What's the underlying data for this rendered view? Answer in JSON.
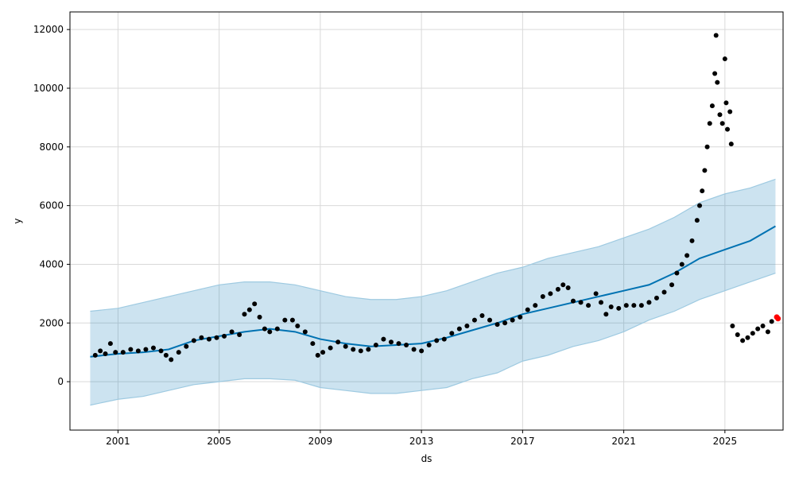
{
  "chart_data": {
    "type": "scatter",
    "title": "",
    "xlabel": "ds",
    "ylabel": "y",
    "xlim": [
      1999.1,
      2027.3
    ],
    "ylim": [
      -1650,
      12600
    ],
    "x_ticks": [
      2001,
      2005,
      2009,
      2013,
      2017,
      2021,
      2025
    ],
    "x_tick_labels": [
      "2001",
      "2005",
      "2009",
      "2013",
      "2017",
      "2021",
      "2025"
    ],
    "y_ticks": [
      0,
      2000,
      4000,
      6000,
      8000,
      10000,
      12000
    ],
    "y_tick_labels": [
      "0",
      "2000",
      "4000",
      "6000",
      "8000",
      "10000",
      "12000"
    ],
    "grid": true,
    "legend": "none",
    "colors": {
      "observed": "#000000",
      "forecast": "#0072B2",
      "interval_fill": "#0072B2",
      "interval_edge": "#9ecae1",
      "highlight": "#ff0000",
      "grid": "#d9d9d9"
    },
    "observed_points": [
      [
        2000.1,
        900
      ],
      [
        2000.3,
        1050
      ],
      [
        2000.5,
        950
      ],
      [
        2000.7,
        1300
      ],
      [
        2000.9,
        1000
      ],
      [
        2001.2,
        1000
      ],
      [
        2001.5,
        1100
      ],
      [
        2001.8,
        1050
      ],
      [
        2002.1,
        1100
      ],
      [
        2002.4,
        1150
      ],
      [
        2002.7,
        1050
      ],
      [
        2002.9,
        900
      ],
      [
        2003.1,
        750
      ],
      [
        2003.4,
        1000
      ],
      [
        2003.7,
        1200
      ],
      [
        2004.0,
        1400
      ],
      [
        2004.3,
        1500
      ],
      [
        2004.6,
        1450
      ],
      [
        2004.9,
        1500
      ],
      [
        2005.2,
        1550
      ],
      [
        2005.5,
        1700
      ],
      [
        2005.8,
        1600
      ],
      [
        2006.0,
        2300
      ],
      [
        2006.2,
        2450
      ],
      [
        2006.4,
        2650
      ],
      [
        2006.6,
        2200
      ],
      [
        2006.8,
        1800
      ],
      [
        2007.0,
        1700
      ],
      [
        2007.3,
        1800
      ],
      [
        2007.6,
        2100
      ],
      [
        2007.9,
        2100
      ],
      [
        2008.1,
        1900
      ],
      [
        2008.4,
        1700
      ],
      [
        2008.7,
        1300
      ],
      [
        2008.9,
        900
      ],
      [
        2009.1,
        1000
      ],
      [
        2009.4,
        1150
      ],
      [
        2009.7,
        1350
      ],
      [
        2010.0,
        1200
      ],
      [
        2010.3,
        1100
      ],
      [
        2010.6,
        1050
      ],
      [
        2010.9,
        1100
      ],
      [
        2011.2,
        1250
      ],
      [
        2011.5,
        1450
      ],
      [
        2011.8,
        1350
      ],
      [
        2012.1,
        1300
      ],
      [
        2012.4,
        1250
      ],
      [
        2012.7,
        1100
      ],
      [
        2013.0,
        1050
      ],
      [
        2013.3,
        1250
      ],
      [
        2013.6,
        1400
      ],
      [
        2013.9,
        1450
      ],
      [
        2014.2,
        1650
      ],
      [
        2014.5,
        1800
      ],
      [
        2014.8,
        1900
      ],
      [
        2015.1,
        2100
      ],
      [
        2015.4,
        2250
      ],
      [
        2015.7,
        2100
      ],
      [
        2016.0,
        1950
      ],
      [
        2016.3,
        2000
      ],
      [
        2016.6,
        2100
      ],
      [
        2016.9,
        2200
      ],
      [
        2017.2,
        2450
      ],
      [
        2017.5,
        2600
      ],
      [
        2017.8,
        2900
      ],
      [
        2018.1,
        3000
      ],
      [
        2018.4,
        3150
      ],
      [
        2018.6,
        3300
      ],
      [
        2018.8,
        3200
      ],
      [
        2019.0,
        2750
      ],
      [
        2019.3,
        2700
      ],
      [
        2019.6,
        2600
      ],
      [
        2019.9,
        3000
      ],
      [
        2020.1,
        2700
      ],
      [
        2020.3,
        2300
      ],
      [
        2020.5,
        2550
      ],
      [
        2020.8,
        2500
      ],
      [
        2021.1,
        2600
      ],
      [
        2021.4,
        2600
      ],
      [
        2021.7,
        2600
      ],
      [
        2022.0,
        2700
      ],
      [
        2022.3,
        2850
      ],
      [
        2022.6,
        3050
      ],
      [
        2022.9,
        3300
      ],
      [
        2023.1,
        3700
      ],
      [
        2023.3,
        4000
      ],
      [
        2023.5,
        4300
      ],
      [
        2023.7,
        4800
      ],
      [
        2023.9,
        5500
      ],
      [
        2024.0,
        6000
      ],
      [
        2024.1,
        6500
      ],
      [
        2024.2,
        7200
      ],
      [
        2024.3,
        8000
      ],
      [
        2024.4,
        8800
      ],
      [
        2024.5,
        9400
      ],
      [
        2024.6,
        10500
      ],
      [
        2024.65,
        11800
      ],
      [
        2024.7,
        10200
      ],
      [
        2024.8,
        9100
      ],
      [
        2024.9,
        8800
      ],
      [
        2025.0,
        11000
      ],
      [
        2025.05,
        9500
      ],
      [
        2025.1,
        8600
      ],
      [
        2025.2,
        9200
      ],
      [
        2025.25,
        8100
      ],
      [
        2025.3,
        1900
      ],
      [
        2025.5,
        1600
      ],
      [
        2025.7,
        1400
      ],
      [
        2025.9,
        1500
      ],
      [
        2026.1,
        1650
      ],
      [
        2026.3,
        1800
      ],
      [
        2026.5,
        1900
      ],
      [
        2026.7,
        1700
      ],
      [
        2026.85,
        2050
      ]
    ],
    "forecast_line": {
      "x": [
        1999.9,
        2001,
        2002,
        2003,
        2004,
        2005,
        2006,
        2007,
        2008,
        2009,
        2010,
        2011,
        2012,
        2013,
        2014,
        2015,
        2016,
        2017,
        2018,
        2019,
        2020,
        2021,
        2022,
        2023,
        2024,
        2025,
        2026,
        2027.0
      ],
      "y": [
        850,
        950,
        1000,
        1100,
        1400,
        1550,
        1700,
        1800,
        1700,
        1450,
        1300,
        1200,
        1250,
        1300,
        1500,
        1750,
        2000,
        2300,
        2500,
        2700,
        2900,
        3100,
        3300,
        3700,
        4200,
        4500,
        4800,
        5300
      ]
    },
    "uncertainty_interval": {
      "upper": [
        2400,
        2500,
        2700,
        2900,
        3100,
        3300,
        3400,
        3400,
        3300,
        3100,
        2900,
        2800,
        2800,
        2900,
        3100,
        3400,
        3700,
        3900,
        4200,
        4400,
        4600,
        4900,
        5200,
        5600,
        6100,
        6400,
        6600,
        6900
      ],
      "lower": [
        -800,
        -600,
        -500,
        -300,
        -100,
        0,
        100,
        100,
        50,
        -200,
        -300,
        -400,
        -400,
        -300,
        -200,
        100,
        300,
        700,
        900,
        1200,
        1400,
        1700,
        2100,
        2400,
        2800,
        3100,
        3400,
        3700
      ]
    },
    "highlighted_points": [
      [
        2027.05,
        2200
      ],
      [
        2027.1,
        2150
      ]
    ]
  }
}
